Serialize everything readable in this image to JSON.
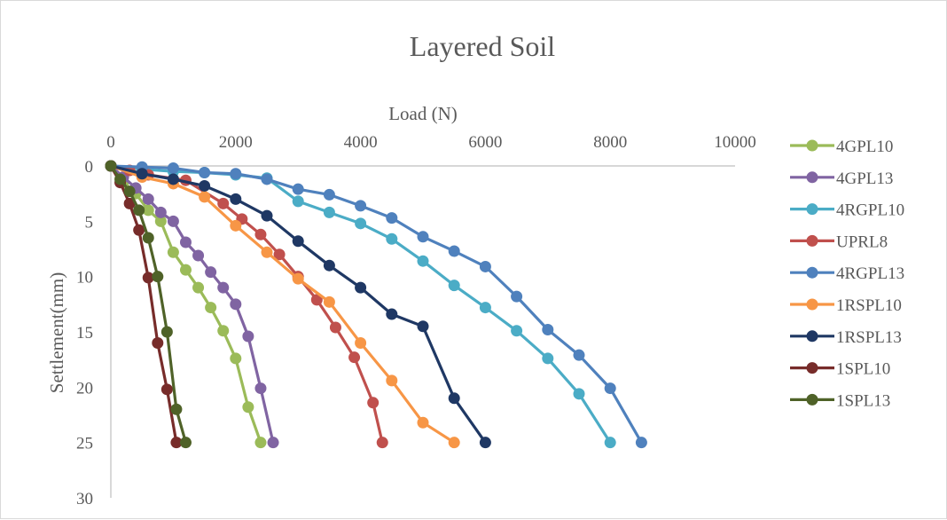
{
  "chart_data": {
    "type": "line",
    "title": "Layered Soil",
    "xlabel": "Load (N)",
    "ylabel": "Settlement(mm)",
    "xlim": [
      0,
      10000
    ],
    "ylim": [
      0,
      30
    ],
    "x_ticks": [
      "0",
      "2000",
      "4000",
      "6000",
      "8000",
      "10000"
    ],
    "y_ticks": [
      "0",
      "5",
      "10",
      "15",
      "20",
      "25",
      "30"
    ],
    "x_axis_position": "top",
    "y_axis_inverted": true,
    "grid": false,
    "legend_position": "right",
    "series": [
      {
        "name": "4GPL10",
        "color": "#9BBB59",
        "points": [
          [
            0,
            0
          ],
          [
            200,
            1.5
          ],
          [
            400,
            2.5
          ],
          [
            600,
            4
          ],
          [
            800,
            5
          ],
          [
            1000,
            7.8
          ],
          [
            1200,
            9.4
          ],
          [
            1400,
            11
          ],
          [
            1600,
            12.8
          ],
          [
            1800,
            14.9
          ],
          [
            2000,
            17.4
          ],
          [
            2200,
            21.8
          ],
          [
            2400,
            25
          ]
        ]
      },
      {
        "name": "4GPL13",
        "color": "#8064A2",
        "points": [
          [
            0,
            0
          ],
          [
            200,
            1
          ],
          [
            400,
            2
          ],
          [
            600,
            3
          ],
          [
            800,
            4.2
          ],
          [
            1000,
            5
          ],
          [
            1200,
            6.9
          ],
          [
            1400,
            8.1
          ],
          [
            1600,
            9.6
          ],
          [
            1800,
            11
          ],
          [
            2000,
            12.5
          ],
          [
            2200,
            15.4
          ],
          [
            2400,
            20.1
          ],
          [
            2600,
            25
          ]
        ]
      },
      {
        "name": "4RGPL10",
        "color": "#4BACC6",
        "points": [
          [
            0,
            0
          ],
          [
            500,
            0.3
          ],
          [
            1000,
            0.5
          ],
          [
            1500,
            0.6
          ],
          [
            2000,
            0.8
          ],
          [
            2500,
            1.1
          ],
          [
            3000,
            3.2
          ],
          [
            3500,
            4.2
          ],
          [
            4000,
            5.2
          ],
          [
            4500,
            6.6
          ],
          [
            5000,
            8.6
          ],
          [
            5500,
            10.8
          ],
          [
            6000,
            12.8
          ],
          [
            6500,
            14.9
          ],
          [
            7000,
            17.4
          ],
          [
            7500,
            20.6
          ],
          [
            8000,
            25
          ]
        ]
      },
      {
        "name": "UPRL8",
        "color": "#C0504D",
        "points": [
          [
            0,
            0
          ],
          [
            300,
            0.4
          ],
          [
            600,
            0.8
          ],
          [
            1200,
            1.3
          ],
          [
            1800,
            3.4
          ],
          [
            2100,
            4.8
          ],
          [
            2400,
            6.2
          ],
          [
            2700,
            8
          ],
          [
            3000,
            10
          ],
          [
            3300,
            12.1
          ],
          [
            3600,
            14.6
          ],
          [
            3900,
            17.3
          ],
          [
            4200,
            21.4
          ],
          [
            4350,
            25
          ]
        ]
      },
      {
        "name": "4RGPL13",
        "color": "#4F81BD",
        "points": [
          [
            0,
            0
          ],
          [
            500,
            0.1
          ],
          [
            1000,
            0.2
          ],
          [
            1500,
            0.6
          ],
          [
            2000,
            0.7
          ],
          [
            2500,
            1.2
          ],
          [
            3000,
            2.1
          ],
          [
            3500,
            2.6
          ],
          [
            4000,
            3.6
          ],
          [
            4500,
            4.7
          ],
          [
            5000,
            6.4
          ],
          [
            5500,
            7.7
          ],
          [
            6000,
            9.1
          ],
          [
            6500,
            11.8
          ],
          [
            7000,
            14.8
          ],
          [
            7500,
            17.1
          ],
          [
            8000,
            20.1
          ],
          [
            8500,
            25
          ]
        ]
      },
      {
        "name": "1RSPL10",
        "color": "#F79646",
        "points": [
          [
            0,
            0
          ],
          [
            500,
            1
          ],
          [
            1000,
            1.6
          ],
          [
            1500,
            2.8
          ],
          [
            2000,
            5.4
          ],
          [
            2500,
            7.8
          ],
          [
            3000,
            10.2
          ],
          [
            3500,
            12.3
          ],
          [
            4000,
            16
          ],
          [
            4500,
            19.4
          ],
          [
            5000,
            23.2
          ],
          [
            5500,
            25
          ]
        ]
      },
      {
        "name": "1RSPL13",
        "color": "#1F3864",
        "points": [
          [
            0,
            0
          ],
          [
            500,
            0.7
          ],
          [
            1000,
            1.2
          ],
          [
            1500,
            1.8
          ],
          [
            2000,
            3
          ],
          [
            2500,
            4.5
          ],
          [
            3000,
            6.8
          ],
          [
            3500,
            9
          ],
          [
            4000,
            11
          ],
          [
            4500,
            13.4
          ],
          [
            5000,
            14.5
          ],
          [
            5500,
            21
          ],
          [
            6000,
            25
          ]
        ]
      },
      {
        "name": "1SPL10",
        "color": "#772C2A",
        "points": [
          [
            0,
            0
          ],
          [
            150,
            1.5
          ],
          [
            300,
            3.4
          ],
          [
            450,
            5.8
          ],
          [
            600,
            10.1
          ],
          [
            750,
            16
          ],
          [
            900,
            20.2
          ],
          [
            1050,
            25
          ]
        ]
      },
      {
        "name": "1SPL13",
        "color": "#4F6228",
        "points": [
          [
            0,
            0
          ],
          [
            150,
            1.2
          ],
          [
            300,
            2.3
          ],
          [
            450,
            4
          ],
          [
            600,
            6.5
          ],
          [
            750,
            10
          ],
          [
            900,
            15
          ],
          [
            1050,
            22
          ],
          [
            1200,
            25
          ]
        ]
      }
    ]
  }
}
